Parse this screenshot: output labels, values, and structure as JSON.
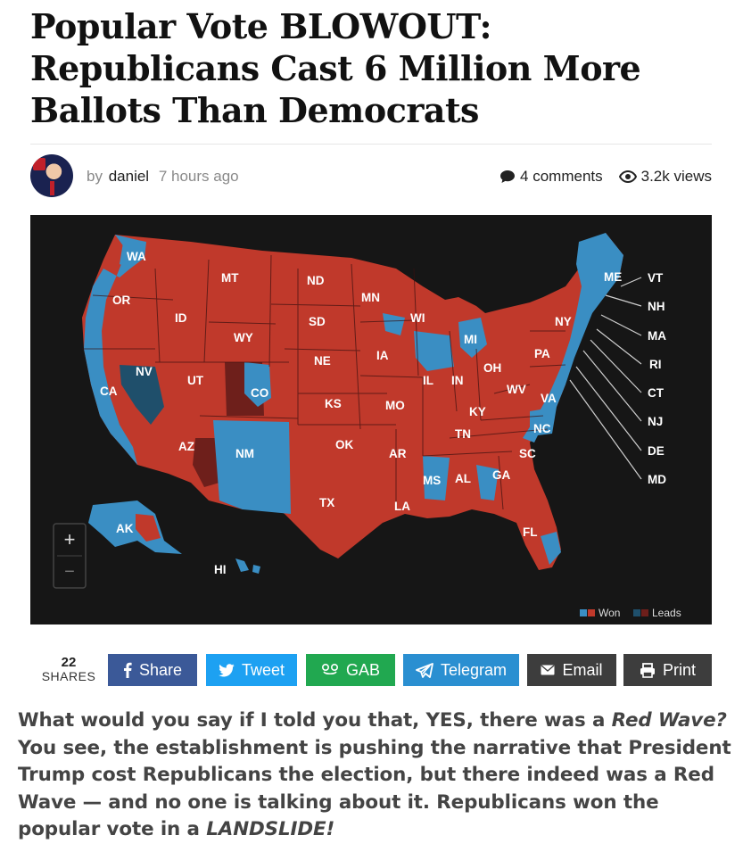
{
  "article": {
    "title": "Popular Vote BLOWOUT: Republicans Cast 6 Million More Ballots Than Democrats",
    "by_prefix": "by",
    "author": "daniel",
    "time": "7 hours ago",
    "comments": "4 comments",
    "views": "3.2k views"
  },
  "map": {
    "zoom_in": "+",
    "zoom_out": "−",
    "legend": {
      "won": "Won",
      "leads": "Leads"
    },
    "colors": {
      "republican": "#c0392b",
      "democrat": "#3a8ec3",
      "republican_leads": "#6e1f1b",
      "democrat_leads": "#1f4f6b",
      "background": "#161616"
    },
    "state_labels": [
      "WA",
      "OR",
      "CA",
      "NV",
      "ID",
      "MT",
      "WY",
      "UT",
      "AZ",
      "CO",
      "NM",
      "ND",
      "SD",
      "NE",
      "KS",
      "OK",
      "TX",
      "MN",
      "IA",
      "MO",
      "AR",
      "LA",
      "WI",
      "IL",
      "MI",
      "IN",
      "OH",
      "KY",
      "TN",
      "MS",
      "AL",
      "GA",
      "FL",
      "SC",
      "NC",
      "VA",
      "WV",
      "PA",
      "NY",
      "ME",
      "AK",
      "HI"
    ],
    "northeast_labels": [
      "VT",
      "NH",
      "MA",
      "RI",
      "CT",
      "NJ",
      "DE",
      "MD"
    ]
  },
  "share": {
    "count": "22",
    "count_label": "SHARES",
    "buttons": [
      {
        "label": "Share",
        "color": "#3b5998"
      },
      {
        "label": "Tweet",
        "color": "#1da1f2"
      },
      {
        "label": "GAB",
        "color": "#21a850"
      },
      {
        "label": "Telegram",
        "color": "#2a8fd1"
      },
      {
        "label": "Email",
        "color": "#3d3d3d"
      },
      {
        "label": "Print",
        "color": "#3d3d3d"
      }
    ]
  },
  "body": {
    "p1": "What would you say if I told you that, YES, there was a ",
    "p1_em": "Red Wave?",
    "p2": " You see, the establishment is pushing the narrative that President Trump cost Republicans the election, but there indeed was a Red Wave — and no one is talking about it. Republicans won the popular vote in a ",
    "p2_em": "LANDSLIDE!"
  }
}
